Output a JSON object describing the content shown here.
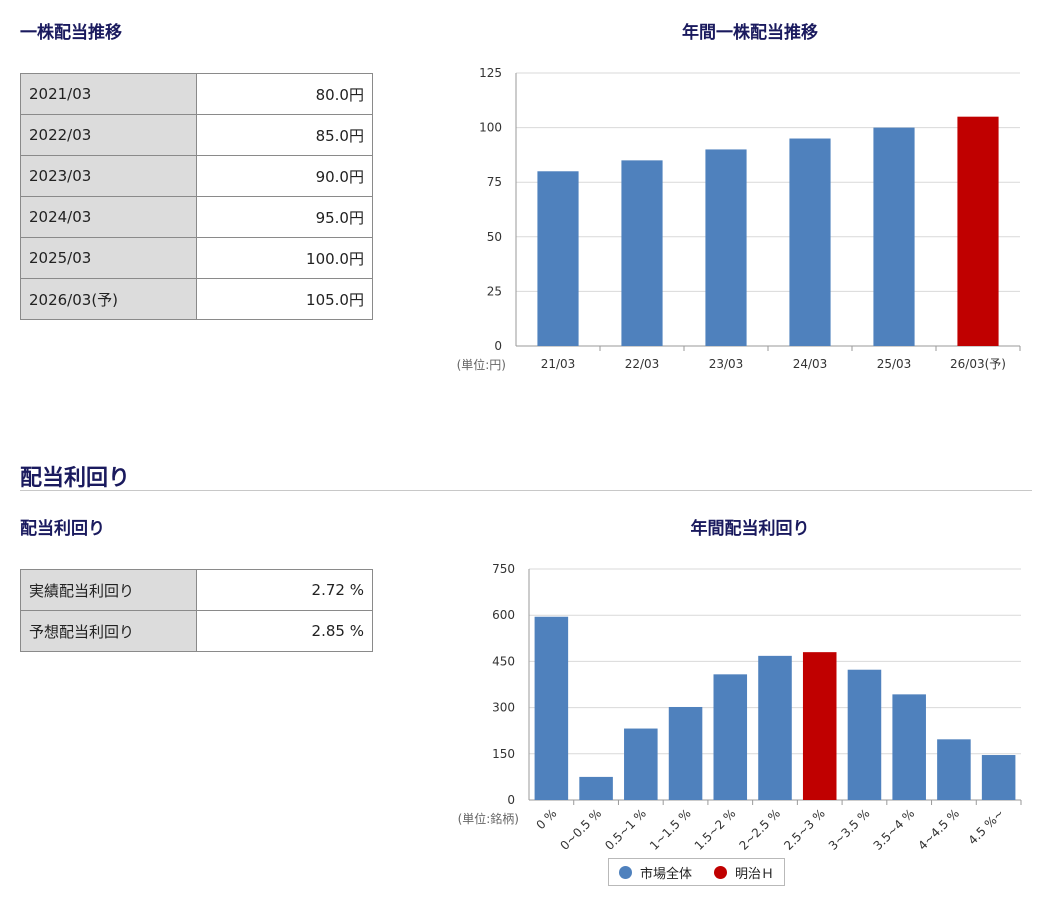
{
  "section1": {
    "heading": "一株配当推移",
    "table": [
      {
        "label": "2021/03",
        "value": "80.0",
        "unit": "円"
      },
      {
        "label": "2022/03",
        "value": "85.0",
        "unit": "円"
      },
      {
        "label": "2023/03",
        "value": "90.0",
        "unit": "円"
      },
      {
        "label": "2024/03",
        "value": "95.0",
        "unit": "円"
      },
      {
        "label": "2025/03",
        "value": "100.0",
        "unit": "円"
      },
      {
        "label": "2026/03(予)",
        "value": "105.0",
        "unit": "円"
      }
    ]
  },
  "section2": {
    "title": "配当利回り",
    "heading": "配当利回り",
    "table": [
      {
        "label": "実績配当利回り",
        "value": "2.72",
        "unit": "%"
      },
      {
        "label": "予想配当利回り",
        "value": "2.85",
        "unit": "%"
      }
    ]
  },
  "chart_data": [
    {
      "type": "bar",
      "title": "年間一株配当推移",
      "unit_label": "(単位:円)",
      "categories": [
        "21/03",
        "22/03",
        "23/03",
        "24/03",
        "25/03",
        "26/03(予)"
      ],
      "values": [
        80,
        85,
        90,
        95,
        100,
        105
      ],
      "highlight_index": 5,
      "ylim": [
        0,
        125
      ],
      "yticks": [
        0,
        25,
        50,
        75,
        100,
        125
      ],
      "grid": true,
      "colors": {
        "bar": "#4f81bd",
        "highlight": "#c00000"
      }
    },
    {
      "type": "bar",
      "title": "年間配当利回り",
      "unit_label": "(単位:銘柄)",
      "categories": [
        "0 %",
        "0~0.5 %",
        "0.5~1 %",
        "1~1.5 %",
        "1.5~2 %",
        "2~2.5 %",
        "2.5~3 %",
        "3~3.5 %",
        "3.5~4 %",
        "4~4.5 %",
        "4.5 %~"
      ],
      "values": [
        595,
        75,
        232,
        302,
        408,
        468,
        480,
        423,
        343,
        197,
        146
      ],
      "highlight_index": 6,
      "ylim": [
        0,
        750
      ],
      "yticks": [
        0,
        150,
        300,
        450,
        600,
        750
      ],
      "grid": true,
      "legend": [
        {
          "name": "市場全体",
          "color": "#4f81bd"
        },
        {
          "name": "明治Ｈ",
          "color": "#c00000"
        }
      ],
      "legend_position": "bottom",
      "colors": {
        "bar": "#4f81bd",
        "highlight": "#c00000"
      }
    }
  ]
}
